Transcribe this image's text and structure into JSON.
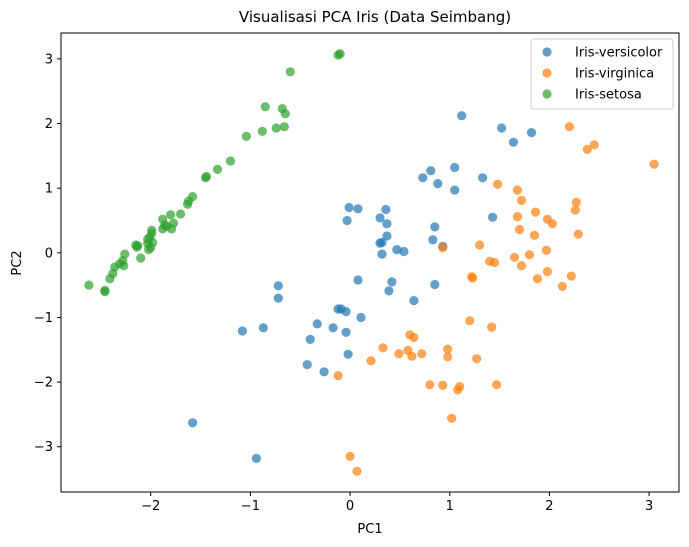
{
  "chart_data": {
    "type": "scatter",
    "title": "Visualisasi PCA Iris (Data Seimbang)",
    "xlabel": "PC1",
    "ylabel": "PC2",
    "xlim": [
      -2.9,
      3.3
    ],
    "ylim": [
      -3.7,
      3.4
    ],
    "xticks": [
      -2,
      -1,
      0,
      1,
      2,
      3
    ],
    "yticks": [
      -3,
      -2,
      -1,
      0,
      1,
      2,
      3
    ],
    "xtick_labels": [
      "−2",
      "−1",
      "0",
      "1",
      "2",
      "3"
    ],
    "ytick_labels": [
      "−3",
      "−2",
      "−1",
      "0",
      "1",
      "2",
      "3"
    ],
    "grid": false,
    "legend_position": "top-right",
    "series": [
      {
        "name": "Iris-versicolor",
        "color": "#1f77b4",
        "points": [
          [
            1.12,
            2.12
          ],
          [
            1.52,
            1.93
          ],
          [
            1.82,
            1.86
          ],
          [
            1.64,
            1.71
          ],
          [
            0.81,
            1.27
          ],
          [
            0.73,
            1.16
          ],
          [
            0.88,
            1.07
          ],
          [
            1.05,
            0.97
          ],
          [
            1.05,
            1.32
          ],
          [
            1.33,
            1.16
          ],
          [
            0.08,
            0.68
          ],
          [
            0.3,
            0.54
          ],
          [
            0.36,
            0.67
          ],
          [
            0.37,
            0.45
          ],
          [
            -0.03,
            0.5
          ],
          [
            -0.01,
            0.7
          ],
          [
            0.85,
            0.4
          ],
          [
            0.83,
            0.2
          ],
          [
            0.93,
            0.1
          ],
          [
            0.37,
            0.26
          ],
          [
            0.3,
            0.15
          ],
          [
            0.32,
            0.16
          ],
          [
            0.47,
            0.05
          ],
          [
            0.54,
            0.02
          ],
          [
            0.32,
            -0.02
          ],
          [
            1.43,
            0.55
          ],
          [
            0.08,
            -0.42
          ],
          [
            0.42,
            -0.45
          ],
          [
            0.39,
            -0.59
          ],
          [
            0.64,
            -0.74
          ],
          [
            0.85,
            -0.49
          ],
          [
            -0.72,
            -0.51
          ],
          [
            -0.72,
            -0.7
          ],
          [
            -0.09,
            -0.87
          ],
          [
            -0.12,
            -0.87
          ],
          [
            -0.04,
            -0.91
          ],
          [
            0.11,
            -1.0
          ],
          [
            -0.33,
            -1.1
          ],
          [
            -0.17,
            -1.16
          ],
          [
            -1.08,
            -1.21
          ],
          [
            -0.87,
            -1.16
          ],
          [
            -0.4,
            -1.34
          ],
          [
            -0.04,
            -1.23
          ],
          [
            -0.02,
            -1.57
          ],
          [
            -0.43,
            -1.73
          ],
          [
            -0.26,
            -1.84
          ],
          [
            -1.58,
            -2.63
          ],
          [
            -0.94,
            -3.18
          ]
        ]
      },
      {
        "name": "Iris-virginica",
        "color": "#ff7f0e",
        "points": [
          [
            2.2,
            1.95
          ],
          [
            2.38,
            1.6
          ],
          [
            2.45,
            1.67
          ],
          [
            3.05,
            1.37
          ],
          [
            1.48,
            1.06
          ],
          [
            1.68,
            0.97
          ],
          [
            1.72,
            0.81
          ],
          [
            1.86,
            0.63
          ],
          [
            2.27,
            0.78
          ],
          [
            2.26,
            0.66
          ],
          [
            1.68,
            0.56
          ],
          [
            1.98,
            0.52
          ],
          [
            2.03,
            0.45
          ],
          [
            1.7,
            0.36
          ],
          [
            1.85,
            0.27
          ],
          [
            2.29,
            0.29
          ],
          [
            0.93,
            0.08
          ],
          [
            1.3,
            0.12
          ],
          [
            1.97,
            0.04
          ],
          [
            1.8,
            -0.03
          ],
          [
            1.65,
            -0.07
          ],
          [
            1.72,
            -0.2
          ],
          [
            1.4,
            -0.13
          ],
          [
            1.45,
            -0.15
          ],
          [
            2.22,
            -0.36
          ],
          [
            1.98,
            -0.29
          ],
          [
            1.88,
            -0.4
          ],
          [
            2.13,
            -0.52
          ],
          [
            1.22,
            -0.37
          ],
          [
            1.23,
            -0.39
          ],
          [
            1.2,
            -1.05
          ],
          [
            1.42,
            -1.15
          ],
          [
            0.6,
            -1.27
          ],
          [
            0.64,
            -1.31
          ],
          [
            0.33,
            -1.47
          ],
          [
            0.58,
            -1.51
          ],
          [
            0.49,
            -1.56
          ],
          [
            0.62,
            -1.6
          ],
          [
            0.72,
            -1.56
          ],
          [
            0.98,
            -1.49
          ],
          [
            0.98,
            -1.61
          ],
          [
            1.27,
            -1.64
          ],
          [
            0.21,
            -1.67
          ],
          [
            -0.12,
            -1.9
          ],
          [
            0.8,
            -2.04
          ],
          [
            0.93,
            -2.05
          ],
          [
            1.1,
            -2.07
          ],
          [
            1.08,
            -2.12
          ],
          [
            1.47,
            -2.04
          ],
          [
            1.02,
            -2.56
          ],
          [
            0.0,
            -3.15
          ],
          [
            0.07,
            -3.38
          ]
        ]
      },
      {
        "name": "Iris-setosa",
        "color": "#2ca02c",
        "points": [
          [
            -0.1,
            3.08
          ],
          [
            -0.12,
            3.06
          ],
          [
            -0.6,
            2.8
          ],
          [
            -0.85,
            2.26
          ],
          [
            -0.68,
            2.23
          ],
          [
            -0.65,
            2.15
          ],
          [
            -0.74,
            1.93
          ],
          [
            -0.66,
            1.95
          ],
          [
            -0.88,
            1.88
          ],
          [
            -1.04,
            1.8
          ],
          [
            -1.2,
            1.42
          ],
          [
            -1.33,
            1.29
          ],
          [
            -1.44,
            1.18
          ],
          [
            -1.45,
            1.16
          ],
          [
            -1.58,
            0.87
          ],
          [
            -1.62,
            0.8
          ],
          [
            -1.63,
            0.75
          ],
          [
            -1.7,
            0.6
          ],
          [
            -1.8,
            0.59
          ],
          [
            -1.88,
            0.52
          ],
          [
            -1.77,
            0.46
          ],
          [
            -1.84,
            0.41
          ],
          [
            -1.88,
            0.37
          ],
          [
            -1.79,
            0.37
          ],
          [
            -1.86,
            0.43
          ],
          [
            -1.99,
            0.35
          ],
          [
            -1.99,
            0.3
          ],
          [
            -2.01,
            0.24
          ],
          [
            -2.03,
            0.21
          ],
          [
            -1.98,
            0.16
          ],
          [
            -2.03,
            0.14
          ],
          [
            -2.13,
            0.11
          ],
          [
            -2.15,
            0.12
          ],
          [
            -2.14,
            0.09
          ],
          [
            -2.0,
            0.08
          ],
          [
            -2.02,
            0.05
          ],
          [
            -2.1,
            -0.08
          ],
          [
            -2.26,
            -0.02
          ],
          [
            -2.28,
            -0.12
          ],
          [
            -2.31,
            -0.17
          ],
          [
            -2.27,
            -0.2
          ],
          [
            -2.36,
            -0.22
          ],
          [
            -2.38,
            -0.32
          ],
          [
            -2.41,
            -0.4
          ],
          [
            -2.62,
            -0.5
          ],
          [
            -2.46,
            -0.58
          ],
          [
            -2.46,
            -0.6
          ]
        ]
      }
    ]
  }
}
